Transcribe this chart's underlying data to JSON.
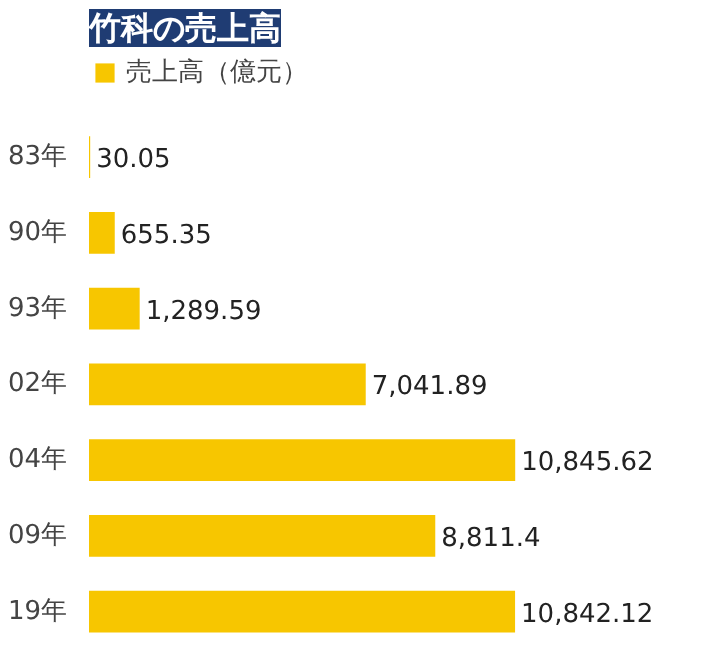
{
  "chart_data": {
    "type": "bar",
    "orientation": "horizontal",
    "title": "竹科の売上高",
    "categories": [
      "83年",
      "90年",
      "93年",
      "02年",
      "04年",
      "09年",
      "19年"
    ],
    "series": [
      {
        "name": "売上高（億元）",
        "color": "#f7c600",
        "values": [
          30.05,
          655.35,
          1289.59,
          7041.89,
          10845.62,
          8811.4,
          10842.12
        ],
        "value_labels": [
          "30.05",
          "655.35",
          "1,289.59",
          "7,041.89",
          "10,845.62",
          "8,811.4",
          "10,842.12"
        ]
      }
    ],
    "tick_labels": "y",
    "legend": "top left",
    "grid": false
  }
}
